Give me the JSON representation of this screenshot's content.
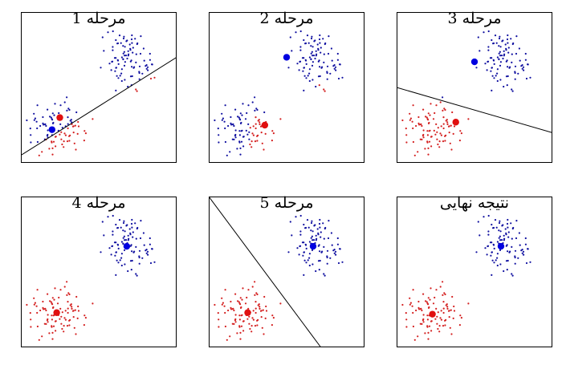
{
  "colors": {
    "cluster_a": "#1010a0",
    "cluster_b": "#d42020",
    "centroid_a": "#0000e0",
    "centroid_b": "#e01010"
  },
  "panels": [
    {
      "title": "مرحله 1",
      "has_boundary": true,
      "centroid_a": [
        0.2,
        0.78
      ],
      "centroid_b": [
        0.25,
        0.7
      ],
      "boundary": [
        [
          0,
          0.95
        ],
        [
          1.0,
          0.3
        ]
      ]
    },
    {
      "title": "مرحله 2",
      "has_boundary": false,
      "centroid_a": [
        0.5,
        0.3
      ],
      "centroid_b": [
        0.36,
        0.75
      ]
    },
    {
      "title": "مرحله 3",
      "has_boundary": true,
      "centroid_a": [
        0.5,
        0.33
      ],
      "centroid_b": [
        0.38,
        0.73
      ],
      "boundary": [
        [
          0,
          0.5
        ],
        [
          1.0,
          0.8
        ]
      ]
    },
    {
      "title": "مرحله 4",
      "has_boundary": false,
      "centroid_a": [
        0.68,
        0.33
      ],
      "centroid_b": [
        0.23,
        0.77
      ]
    },
    {
      "title": "مرحله 5",
      "has_boundary": true,
      "centroid_a": [
        0.67,
        0.33
      ],
      "centroid_b": [
        0.25,
        0.77
      ],
      "boundary": [
        [
          0,
          0.0
        ],
        [
          0.72,
          1.0
        ]
      ]
    },
    {
      "title": "نتیجه نهایی",
      "has_boundary": false,
      "centroid_a": [
        0.67,
        0.33
      ],
      "centroid_b": [
        0.23,
        0.78
      ]
    }
  ]
}
